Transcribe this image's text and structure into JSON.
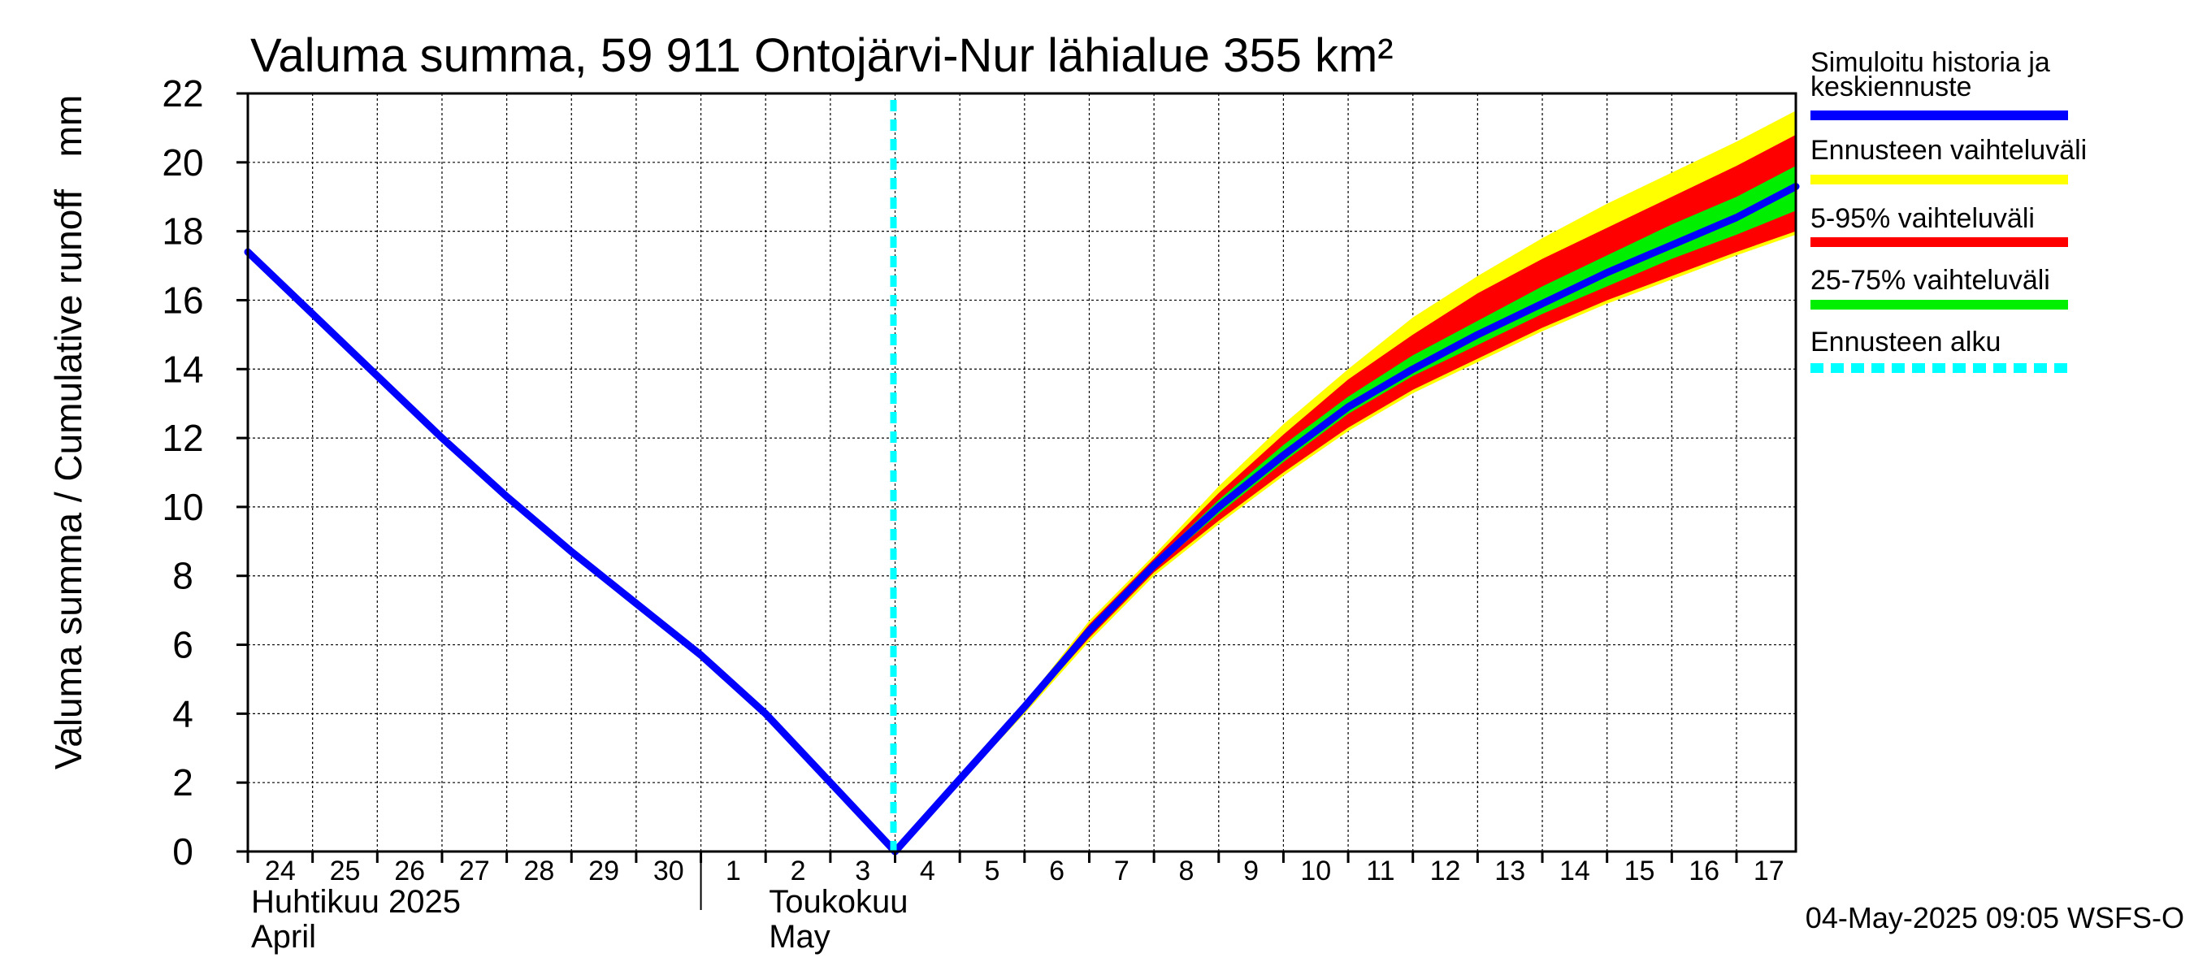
{
  "chart_data": {
    "type": "area",
    "title": "Valuma summa, 59 911 Ontojärvi-Nur lähialue 355 km²",
    "ylabel": "Valuma summa / Cumulative runoff",
    "yunit": "mm",
    "ylim": [
      0,
      22
    ],
    "yticks": [
      "0",
      "2",
      "4",
      "6",
      "8",
      "10",
      "12",
      "14",
      "16",
      "18",
      "20",
      "22"
    ],
    "xlim": [
      "2025-04-24",
      "2025-05-17T22:00"
    ],
    "xticks": [
      {
        "date": "2025-04-24",
        "label": "24"
      },
      {
        "date": "2025-04-25",
        "label": "25"
      },
      {
        "date": "2025-04-26",
        "label": "26"
      },
      {
        "date": "2025-04-27",
        "label": "27"
      },
      {
        "date": "2025-04-28",
        "label": "28"
      },
      {
        "date": "2025-04-29",
        "label": "29"
      },
      {
        "date": "2025-04-30",
        "label": "30"
      },
      {
        "date": "2025-05-01",
        "label": "1"
      },
      {
        "date": "2025-05-02",
        "label": "2"
      },
      {
        "date": "2025-05-03",
        "label": "3"
      },
      {
        "date": "2025-05-04",
        "label": "4"
      },
      {
        "date": "2025-05-05",
        "label": "5"
      },
      {
        "date": "2025-05-06",
        "label": "6"
      },
      {
        "date": "2025-05-07",
        "label": "7"
      },
      {
        "date": "2025-05-08",
        "label": "8"
      },
      {
        "date": "2025-05-09",
        "label": "9"
      },
      {
        "date": "2025-05-10",
        "label": "10"
      },
      {
        "date": "2025-05-11",
        "label": "11"
      },
      {
        "date": "2025-05-12",
        "label": "12"
      },
      {
        "date": "2025-05-13",
        "label": "13"
      },
      {
        "date": "2025-05-14",
        "label": "14"
      },
      {
        "date": "2025-05-15",
        "label": "15"
      },
      {
        "date": "2025-05-16",
        "label": "16"
      },
      {
        "date": "2025-05-17",
        "label": "17"
      }
    ],
    "month_labels": [
      {
        "date": "2025-04-24",
        "line1": "Huhtikuu  2025",
        "line2": "April"
      },
      {
        "date": "2025-05-02",
        "line1": "Toukokuu",
        "line2": "May"
      }
    ],
    "month_divider_date": "2025-05-01",
    "grid": true,
    "forecast_start": "2025-05-04",
    "history": {
      "x": [
        "2025-04-24",
        "2025-04-25",
        "2025-04-26",
        "2025-04-27",
        "2025-04-28",
        "2025-04-29",
        "2025-04-30",
        "2025-05-01",
        "2025-05-02",
        "2025-05-03",
        "2025-05-04"
      ],
      "y": [
        17.4,
        15.6,
        13.8,
        12.0,
        10.3,
        8.7,
        7.2,
        5.7,
        4.0,
        2.0,
        0
      ]
    },
    "forecast_x": [
      "2025-05-04",
      "2025-05-05",
      "2025-05-06",
      "2025-05-07",
      "2025-05-08",
      "2025-05-09",
      "2025-05-10",
      "2025-05-11",
      "2025-05-12",
      "2025-05-13",
      "2025-05-14",
      "2025-05-15",
      "2025-05-16",
      "2025-05-17",
      "2025-05-17T22:00"
    ],
    "bands": [
      {
        "name": "Ennusteen vaihteluväli",
        "color": "#ffff00",
        "lower": [
          0,
          2.0,
          4.0,
          6.1,
          8.0,
          9.5,
          10.9,
          12.2,
          13.3,
          14.2,
          15.1,
          15.9,
          16.6,
          17.3,
          17.9
        ],
        "upper": [
          0,
          2.1,
          4.3,
          6.7,
          8.6,
          10.6,
          12.4,
          14.0,
          15.5,
          16.7,
          17.8,
          18.8,
          19.7,
          20.6,
          21.5
        ]
      },
      {
        "name": "5-95% vaihteluväli",
        "color": "#ff0000",
        "lower": [
          0,
          2.0,
          4.1,
          6.2,
          8.1,
          9.6,
          11.0,
          12.3,
          13.4,
          14.3,
          15.2,
          16.0,
          16.7,
          17.4,
          18.0
        ],
        "upper": [
          0,
          2.1,
          4.3,
          6.6,
          8.5,
          10.4,
          12.1,
          13.7,
          15.0,
          16.2,
          17.2,
          18.1,
          19.0,
          19.9,
          20.8
        ]
      },
      {
        "name": "25-75% vaihteluväli",
        "color": "#00ee00",
        "lower": [
          0,
          2.0,
          4.2,
          6.3,
          8.2,
          9.8,
          11.3,
          12.7,
          13.8,
          14.7,
          15.6,
          16.4,
          17.2,
          17.9,
          18.6
        ],
        "upper": [
          0,
          2.1,
          4.3,
          6.5,
          8.4,
          10.2,
          11.8,
          13.2,
          14.4,
          15.4,
          16.4,
          17.3,
          18.2,
          19.0,
          19.9
        ]
      }
    ],
    "median": {
      "name": "Simuloitu historia ja keskiennuste",
      "color": "#0000ff",
      "y": [
        0,
        2.1,
        4.2,
        6.4,
        8.3,
        10.0,
        11.5,
        12.9,
        14.0,
        15.0,
        15.9,
        16.8,
        17.6,
        18.4,
        19.3
      ]
    },
    "legend": {
      "placement": "right",
      "entries": [
        {
          "line1": "Simuloitu historia ja",
          "line2": "keskiennuste",
          "color": "#0000ff",
          "style": "solid"
        },
        {
          "line1": "Ennusteen vaihteluväli",
          "line2": "",
          "color": "#ffff00",
          "style": "solid"
        },
        {
          "line1": "5-95% vaihteluväli",
          "line2": "",
          "color": "#ff0000",
          "style": "solid"
        },
        {
          "line1": "25-75% vaihteluväli",
          "line2": "",
          "color": "#00ee00",
          "style": "solid"
        },
        {
          "line1": "Ennusteen alku",
          "line2": "",
          "color": "#00ffff",
          "style": "dashed"
        }
      ]
    },
    "footer": "04-May-2025 09:05 WSFS-O"
  }
}
